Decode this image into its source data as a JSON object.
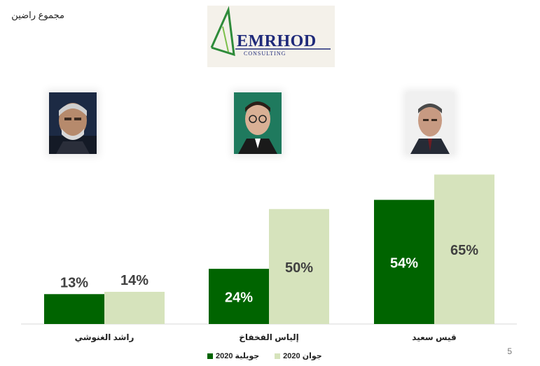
{
  "header": {
    "text": "مجموع راضين"
  },
  "logo": {
    "name": "EMRHOD",
    "sub": "CONSULTING"
  },
  "colors": {
    "july": "#006400",
    "june": "#d6e3bc",
    "axis": "#d9d9d9",
    "text": "#404040",
    "label_light": "#ffffff"
  },
  "portraits": [
    {
      "icon": "portrait-rached-ghannouchi-icon"
    },
    {
      "icon": "portrait-elyes-fakhfakh-icon"
    },
    {
      "icon": "portrait-kais-saied-icon"
    }
  ],
  "page_number": "5",
  "chart_data": {
    "type": "bar",
    "title": "",
    "xlabel": "",
    "ylabel": "",
    "ylim": [
      0,
      70
    ],
    "categories": [
      "راشد الغنوشي",
      "إلياس الفخفاخ",
      "قيس سعيد"
    ],
    "series": [
      {
        "name": "جويلية 2020",
        "values": [
          13,
          24,
          54
        ],
        "labels": [
          "13%",
          "24%",
          "54%"
        ]
      },
      {
        "name": "جوان 2020",
        "values": [
          14,
          50,
          65
        ],
        "labels": [
          "14%",
          "50%",
          "65%"
        ]
      }
    ],
    "legend": "bottom"
  }
}
